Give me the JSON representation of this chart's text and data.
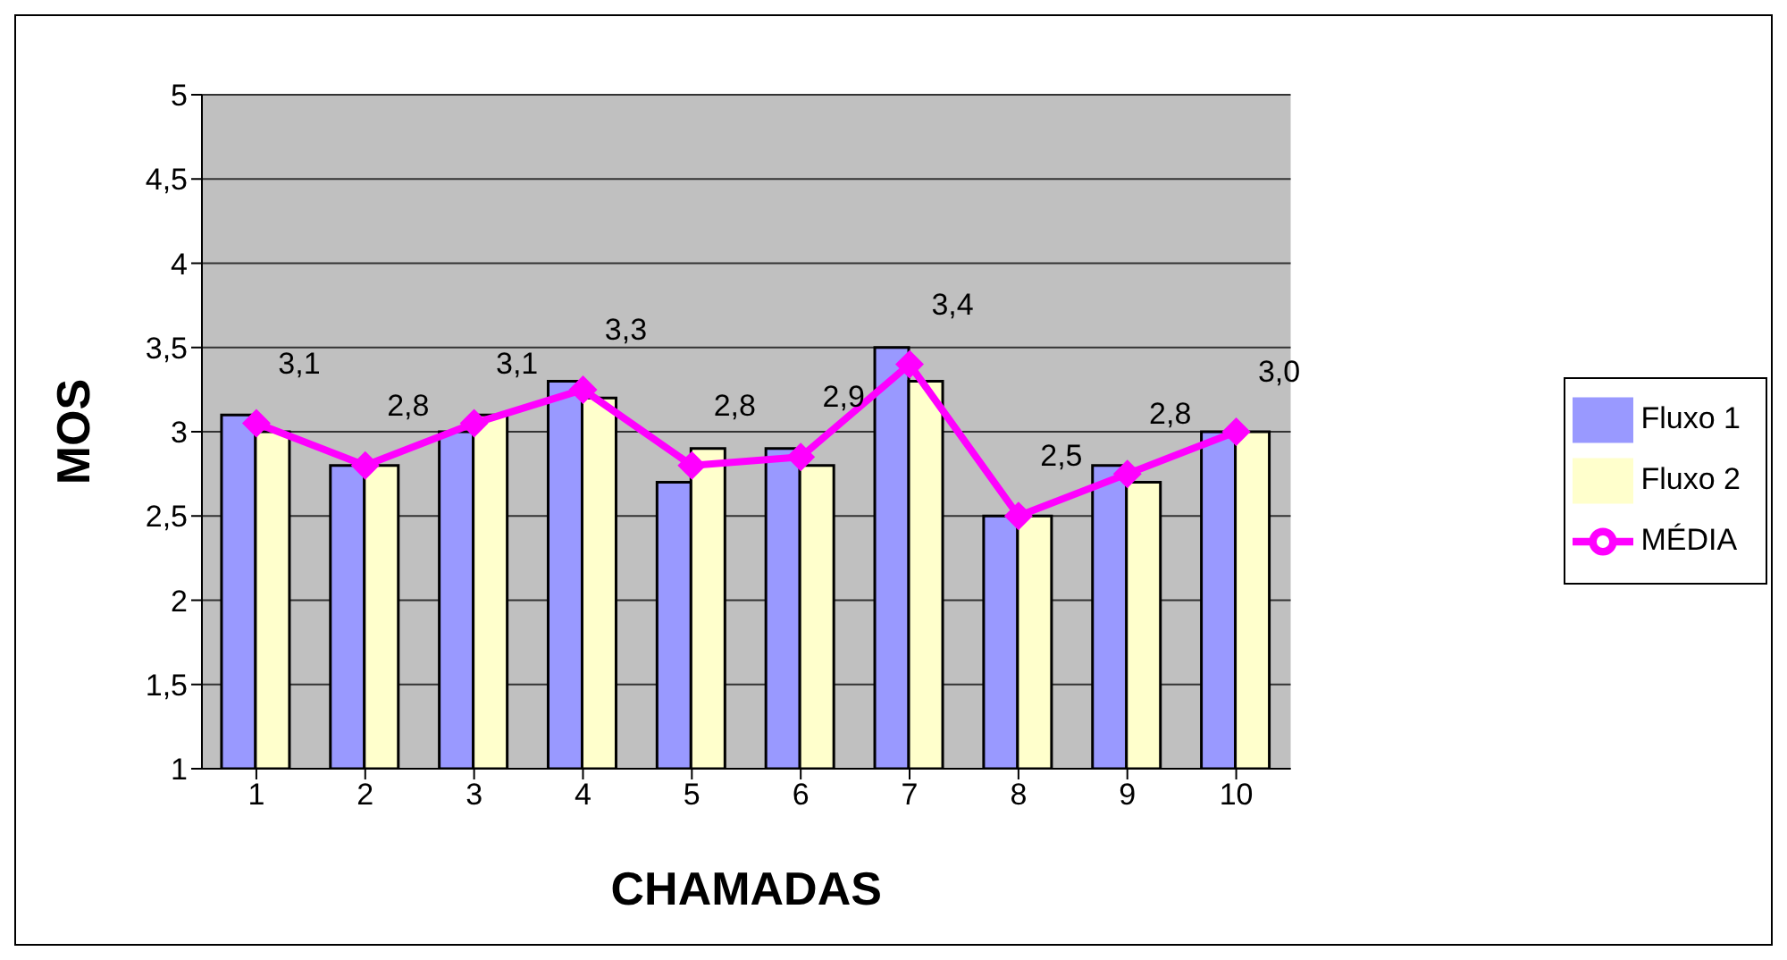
{
  "chart_data": {
    "type": "bar",
    "xlabel": "CHAMADAS",
    "ylabel": "MOS",
    "categories": [
      "1",
      "2",
      "3",
      "4",
      "5",
      "6",
      "7",
      "8",
      "9",
      "10"
    ],
    "series": [
      {
        "name": "Fluxo 1",
        "color": "#9999ff",
        "values": [
          3.1,
          2.8,
          3.0,
          3.3,
          2.7,
          2.9,
          3.5,
          2.5,
          2.8,
          3.0
        ]
      },
      {
        "name": "Fluxo 2",
        "color": "#ffffcc",
        "values": [
          3.0,
          2.8,
          3.1,
          3.2,
          2.9,
          2.8,
          3.3,
          2.5,
          2.7,
          3.0
        ]
      },
      {
        "name": "MÉDIA",
        "type": "line",
        "color": "#ff00ff",
        "marker": "diamond",
        "values": [
          3.05,
          2.8,
          3.05,
          3.25,
          2.8,
          2.85,
          3.4,
          2.5,
          2.75,
          3.0
        ],
        "value_labels": [
          "3,1",
          "2,8",
          "3,1",
          "3,3",
          "2,8",
          "2,9",
          "3,4",
          "2,5",
          "2,8",
          "3,0"
        ]
      }
    ],
    "ylim": [
      1,
      5
    ],
    "yticks": [
      1,
      {
        "value": 1.5,
        "label": "1,5"
      },
      2,
      {
        "value": 2.5,
        "label": "2,5"
      },
      3,
      {
        "value": 3.5,
        "label": "3,5"
      },
      4,
      {
        "value": 4.5,
        "label": "4,5"
      },
      5
    ],
    "grid": "y",
    "legend": "right"
  }
}
